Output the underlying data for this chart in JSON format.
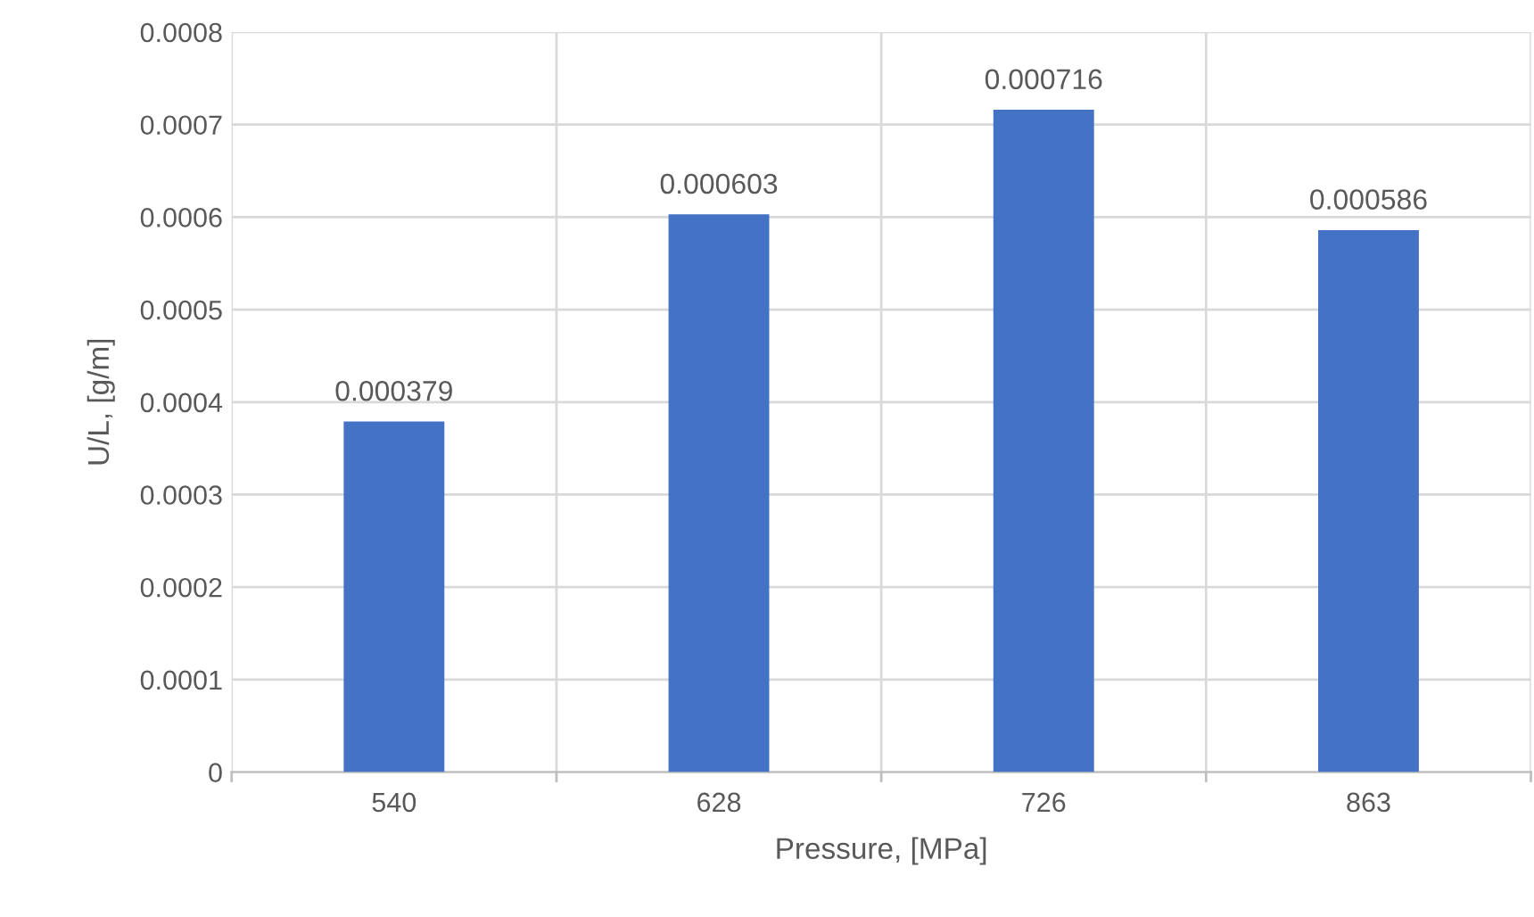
{
  "chart_data": {
    "type": "bar",
    "xlabel": "Pressure, [MPa]",
    "ylabel": "U/L, [g/m]",
    "categories": [
      "540",
      "628",
      "726",
      "863"
    ],
    "values": [
      0.000379,
      0.000603,
      0.000716,
      0.000586
    ],
    "color": "#4472c4",
    "ylim": [
      0,
      0.0008
    ],
    "yticks": [
      0,
      0.0001,
      0.0002,
      0.0003,
      0.0004,
      0.0005,
      0.0006,
      0.0007,
      0.0008
    ],
    "grid": true,
    "data_labels": true
  }
}
